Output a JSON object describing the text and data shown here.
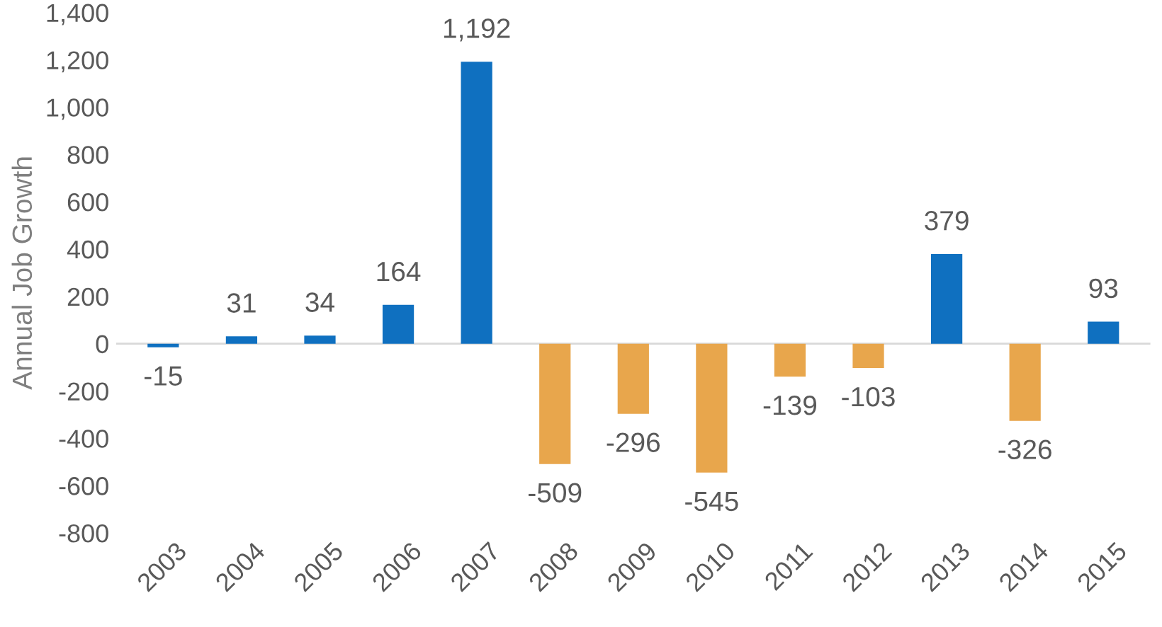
{
  "chart_data": {
    "type": "bar",
    "ylabel": "Annual Job Growth",
    "categories": [
      "2003",
      "2004",
      "2005",
      "2006",
      "2007",
      "2008",
      "2009",
      "2010",
      "2011",
      "2012",
      "2013",
      "2014",
      "2015"
    ],
    "values": [
      -15,
      31,
      34,
      164,
      1192,
      -509,
      -296,
      -545,
      -139,
      -103,
      379,
      -326,
      93
    ],
    "value_labels": [
      "-15",
      "31",
      "34",
      "164",
      "1,192",
      "-509",
      "-296",
      "-545",
      "-139",
      "-103",
      "379",
      "-326",
      "93"
    ],
    "colors": [
      "#0f70c0",
      "#0f70c0",
      "#0f70c0",
      "#0f70c0",
      "#0f70c0",
      "#e8a64c",
      "#e8a64c",
      "#e8a64c",
      "#e8a64c",
      "#e8a64c",
      "#0f70c0",
      "#e8a64c",
      "#0f70c0"
    ],
    "ylim": [
      -800,
      1400
    ],
    "yticks": [
      {
        "value": -800,
        "label": "-800"
      },
      {
        "value": -600,
        "label": "-600"
      },
      {
        "value": -400,
        "label": "-400"
      },
      {
        "value": -200,
        "label": "-200"
      },
      0,
      200,
      400,
      600,
      800,
      {
        "value": 1000,
        "label": "1,000"
      },
      {
        "value": 1200,
        "label": "1,200"
      },
      {
        "value": 1400,
        "label": "1,400"
      }
    ]
  }
}
